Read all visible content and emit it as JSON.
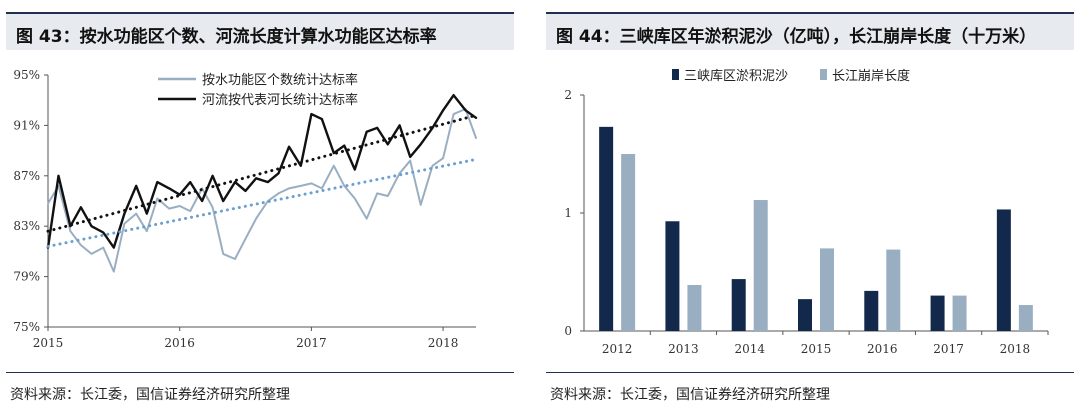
{
  "left": {
    "title": "图 43：按水功能区个数、河流长度计算水功能区达标率",
    "source": "资料来源：长江委，国信证券经济研究所整理"
  },
  "right": {
    "title": "图 44：三峡库区年淤积泥沙（亿吨），长江崩岸长度（十万米）",
    "source": "资料来源：长江委，国信证券经济研究所整理"
  },
  "colors": {
    "navy": "#13294b",
    "light_blue": "#9aaec2",
    "black": "#111111",
    "trend_blue": "#6a9fd0"
  },
  "chart_data": [
    {
      "type": "line",
      "title": "按水功能区个数、河流长度计算水功能区达标率",
      "x_ticks": [
        "2015",
        "2016",
        "2017",
        "2018"
      ],
      "y_ticks": [
        "75%",
        "79%",
        "83%",
        "87%",
        "91%",
        "95%"
      ],
      "ylim": [
        75,
        95
      ],
      "x_range": [
        2015.0,
        2018.25
      ],
      "legend_position": "top-center",
      "series": [
        {
          "name": "按水功能区个数统计达标率",
          "color": "#9aaec2",
          "x": [
            2015.0,
            2015.08,
            2015.17,
            2015.25,
            2015.33,
            2015.42,
            2015.5,
            2015.58,
            2015.67,
            2015.75,
            2015.83,
            2015.92,
            2016.0,
            2016.08,
            2016.17,
            2016.25,
            2016.33,
            2016.42,
            2016.5,
            2016.58,
            2016.67,
            2016.75,
            2016.83,
            2016.92,
            2017.0,
            2017.08,
            2017.17,
            2017.25,
            2017.33,
            2017.42,
            2017.5,
            2017.58,
            2017.67,
            2017.75,
            2017.83,
            2017.92,
            2018.0,
            2018.08,
            2018.17,
            2018.25
          ],
          "y": [
            84.8,
            86.2,
            82.6,
            81.5,
            80.8,
            81.3,
            79.4,
            83.2,
            84.0,
            82.6,
            85.2,
            84.4,
            84.6,
            84.2,
            86.0,
            84.5,
            80.8,
            80.4,
            82.0,
            83.6,
            85.0,
            85.6,
            86.0,
            86.2,
            86.4,
            86.0,
            87.8,
            86.2,
            85.2,
            83.6,
            85.6,
            85.4,
            87.2,
            88.2,
            84.7,
            87.8,
            88.4,
            91.9,
            92.3,
            90.0
          ]
        },
        {
          "name": "河流按代表河长统计达标率",
          "color": "#111111",
          "x": [
            2015.0,
            2015.08,
            2015.17,
            2015.25,
            2015.33,
            2015.42,
            2015.5,
            2015.58,
            2015.67,
            2015.75,
            2015.83,
            2015.92,
            2016.0,
            2016.08,
            2016.17,
            2016.25,
            2016.33,
            2016.42,
            2016.5,
            2016.58,
            2016.67,
            2016.75,
            2016.83,
            2016.92,
            2017.0,
            2017.08,
            2017.17,
            2017.25,
            2017.33,
            2017.42,
            2017.5,
            2017.58,
            2017.67,
            2017.75,
            2017.83,
            2017.92,
            2018.0,
            2018.08,
            2018.17,
            2018.25
          ],
          "y": [
            81.3,
            87.0,
            83.0,
            84.5,
            83.0,
            82.5,
            81.3,
            84.0,
            86.2,
            84.0,
            86.5,
            86.0,
            85.5,
            86.5,
            85.0,
            87.0,
            85.0,
            86.5,
            85.8,
            86.8,
            86.5,
            87.2,
            89.3,
            87.8,
            91.9,
            91.5,
            88.8,
            89.4,
            87.5,
            90.5,
            90.8,
            89.5,
            91.0,
            88.5,
            89.5,
            90.8,
            92.2,
            93.4,
            92.2,
            91.6
          ]
        },
        {
          "name": "",
          "color": "#111111",
          "style": "dotted",
          "x": [
            2015.0,
            2018.25
          ],
          "y": [
            82.6,
            91.8
          ]
        },
        {
          "name": "",
          "color": "#6a9fd0",
          "style": "dotted",
          "x": [
            2015.0,
            2018.25
          ],
          "y": [
            81.4,
            88.3
          ]
        }
      ]
    },
    {
      "type": "bar",
      "title": "三峡库区年淤积泥沙（亿吨），长江崩岸长度（十万米）",
      "categories": [
        "2012",
        "2013",
        "2014",
        "2015",
        "2016",
        "2017",
        "2018"
      ],
      "y_ticks": [
        "0",
        "1",
        "2"
      ],
      "ylim": [
        0,
        2
      ],
      "legend_position": "top-center",
      "series": [
        {
          "name": "三峡库区淤积泥沙",
          "color": "#13294b",
          "values": [
            1.73,
            0.93,
            0.44,
            0.27,
            0.34,
            0.3,
            1.03
          ]
        },
        {
          "name": "长江崩岸长度",
          "color": "#9aaec2",
          "values": [
            1.5,
            0.39,
            1.11,
            0.7,
            0.69,
            0.3,
            0.22
          ]
        }
      ]
    }
  ]
}
